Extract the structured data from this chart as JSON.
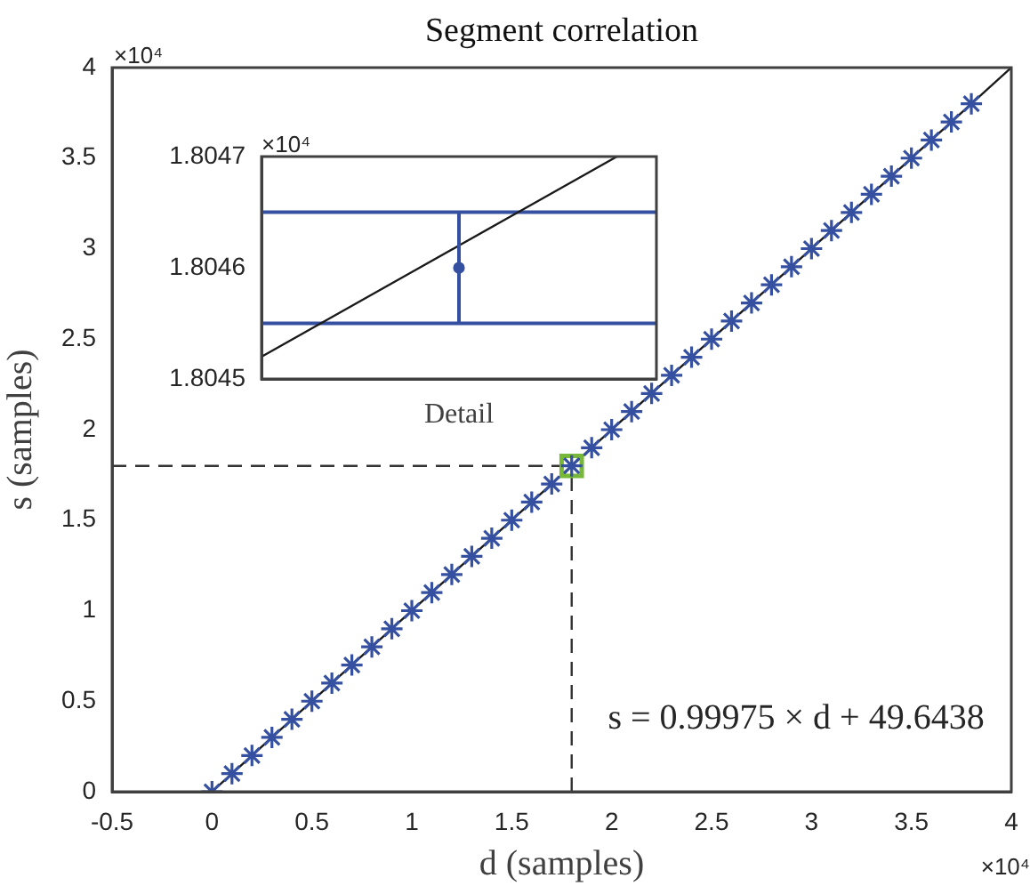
{
  "chart_data": [
    {
      "type": "scatter",
      "title": "Segment correlation",
      "xlabel": "d (samples)",
      "ylabel": "s (samples)",
      "x": [
        0,
        0.1,
        0.2,
        0.3,
        0.4,
        0.5,
        0.6,
        0.7,
        0.8,
        0.9,
        1,
        1.1,
        1.2,
        1.3,
        1.4,
        1.5,
        1.6,
        1.7,
        1.8,
        1.9,
        2,
        2.1,
        2.2,
        2.3,
        2.4,
        2.5,
        2.6,
        2.7,
        2.8,
        2.9,
        3,
        3.1,
        3.2,
        3.3,
        3.4,
        3.5,
        3.6,
        3.7,
        3.8
      ],
      "series": [
        {
          "type": "line",
          "color": "#1a1a1a",
          "marker": "none",
          "x": [
            0,
            4
          ],
          "values": [
            0,
            4
          ]
        },
        {
          "color": "#3550a0",
          "marker": "cross",
          "values": [
            0,
            0.1,
            0.2,
            0.3,
            0.4,
            0.5,
            0.6,
            0.7,
            0.8,
            0.9,
            1,
            1.1,
            1.2,
            1.3,
            1.4,
            1.5,
            1.6,
            1.7,
            1.8,
            1.9,
            2,
            2.1,
            2.2,
            2.3,
            2.4,
            2.5,
            2.6,
            2.7,
            2.8,
            2.9,
            3,
            3.1,
            3.2,
            3.3,
            3.4,
            3.5,
            3.6,
            3.7,
            3.8
          ]
        },
        {
          "color": "#77b73a",
          "marker": "square",
          "x": [
            1.8
          ],
          "values": [
            1.8
          ]
        }
      ],
      "ref_lines": [
        {
          "axis": "x",
          "value": 1.8,
          "color": "#333333",
          "line_style": "dashed"
        },
        {
          "axis": "y",
          "value": 1.8,
          "color": "#333333",
          "line_style": "dashed"
        }
      ],
      "xlim": [
        -0.5,
        4
      ],
      "ylim": [
        0,
        4
      ],
      "xticks": [
        -0.5,
        0,
        0.5,
        1,
        1.5,
        2,
        2.5,
        3,
        3.5,
        4
      ],
      "yticks": [
        0,
        0.5,
        1,
        1.5,
        2,
        2.5,
        3,
        3.5,
        4
      ],
      "annotations": [
        "s = 0.99975 × d + 49.6438",
        "×10⁴",
        "×10⁴"
      ],
      "grid": false,
      "legend": false
    },
    {
      "type": "scatter",
      "xlabel": "Detail",
      "tick_labels": "y",
      "categories": [
        null,
        null,
        null,
        null,
        null,
        null,
        null,
        null,
        null,
        null,
        null
      ],
      "series": [
        {
          "type": "line",
          "color": "#1a1a1a",
          "marker": "none",
          "values": [
            1.80452,
            1.80454,
            1.80456,
            1.80458,
            1.8046,
            1.80462,
            1.80464,
            1.80466,
            1.80468,
            1.8047,
            null
          ]
        },
        {
          "color": "#3550a0",
          "marker": "circle",
          "values": [
            null,
            null,
            null,
            null,
            null,
            1.8046,
            null,
            null,
            null,
            null,
            null
          ],
          "errors": [
            null,
            null,
            null,
            null,
            null,
            5e-05,
            null,
            null,
            null,
            null,
            null
          ]
        }
      ],
      "ref_lines": [
        {
          "axis": "y",
          "value": 1.80455,
          "color": "#3550a0",
          "line_style": "solid"
        },
        {
          "axis": "y",
          "value": 1.80465,
          "color": "#3550a0",
          "line_style": "solid"
        }
      ],
      "ylim": [
        1.8045,
        1.8047
      ],
      "yticks": [
        1.8045,
        1.8046,
        1.8047
      ],
      "annotations": [
        "×10⁴"
      ],
      "grid": false,
      "legend": false
    }
  ]
}
